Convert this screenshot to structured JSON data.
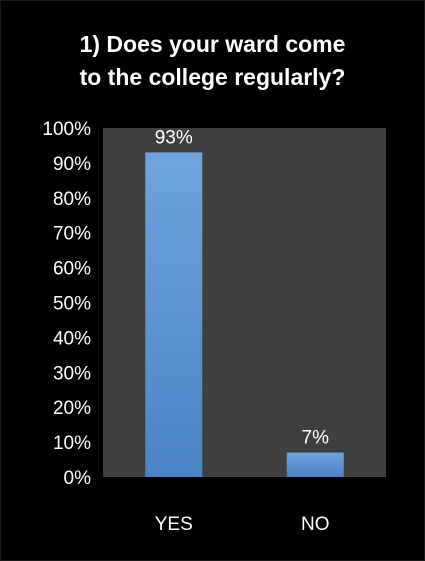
{
  "chart_data": {
    "type": "bar",
    "title_lines": [
      "1) Does your ward come",
      "to the college regularly?"
    ],
    "categories": [
      "YES",
      "NO"
    ],
    "values": [
      93,
      7
    ],
    "data_labels": [
      "93%",
      "7%"
    ],
    "ylim": [
      0,
      100
    ],
    "yticks": [
      "0%",
      "10%",
      "20%",
      "30%",
      "40%",
      "50%",
      "60%",
      "70%",
      "80%",
      "90%",
      "100%"
    ],
    "grid": false,
    "legend": "none",
    "colors": {
      "background": "#000000",
      "plot_area": "#3f3f3f",
      "bar_top": "#6fa4dc",
      "bar_bottom": "#4a83c6",
      "text": "#ffffff"
    }
  }
}
